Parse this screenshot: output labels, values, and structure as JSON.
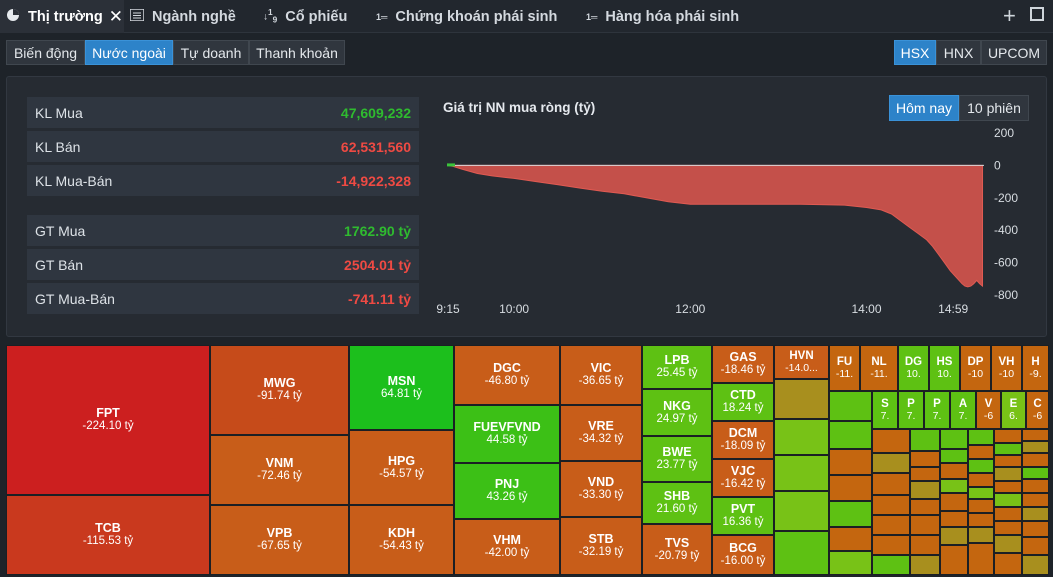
{
  "tabs": [
    {
      "label": "Thị trường",
      "icon": "pie-chart-icon"
    },
    {
      "label": "Ngành nghề",
      "icon": "list-icon"
    },
    {
      "label": "Cổ phiếu",
      "icon": "sort-numeric-icon"
    },
    {
      "label": "Chứng khoán phái sinh",
      "icon": "ordered-list-icon"
    },
    {
      "label": "Hàng hóa phái sinh",
      "icon": "ordered-list-icon"
    }
  ],
  "subtabs": [
    "Biến động",
    "Nước ngoài",
    "Tự doanh",
    "Thanh khoản"
  ],
  "subtab_selected": "Nước ngoài",
  "exchanges": [
    "HSX",
    "HNX",
    "UPCOM"
  ],
  "exchange_selected": "HSX",
  "stats": [
    {
      "label": "KL Mua",
      "value": "47,609,232"
    },
    {
      "label": "KL Bán",
      "value": "62,531,560"
    },
    {
      "label": "KL Mua-Bán",
      "value": "-14,922,328"
    },
    {
      "label": "GT Mua",
      "value": "1762.90 tỷ"
    },
    {
      "label": "GT Bán",
      "value": "2504.01 tỷ"
    },
    {
      "label": "GT Mua-Bán",
      "value": "-741.11 tỷ"
    }
  ],
  "chart_toggle": [
    "Hôm nay",
    "10 phiên"
  ],
  "chart_data": {
    "type": "area",
    "title": "Giá trị NN mua ròng (tỷ)",
    "x_ticks": [
      "9:15",
      "10:00",
      "12:00",
      "14:00",
      "14:59"
    ],
    "y_ticks": [
      "200",
      "0",
      "-200",
      "-400",
      "-600",
      "-800"
    ],
    "ylim": [
      -800,
      200
    ],
    "grid": false,
    "points": [
      [
        0,
        0
      ],
      [
        3,
        -5
      ],
      [
        10,
        -25
      ],
      [
        20,
        -50
      ],
      [
        30,
        -65
      ],
      [
        45,
        -80
      ],
      [
        60,
        -100
      ],
      [
        75,
        -120
      ],
      [
        90,
        -140
      ],
      [
        105,
        -160
      ],
      [
        120,
        -175
      ],
      [
        135,
        -200
      ],
      [
        150,
        -225
      ],
      [
        165,
        -240
      ],
      [
        180,
        -240
      ],
      [
        210,
        -240
      ],
      [
        240,
        -240
      ],
      [
        270,
        -245
      ],
      [
        285,
        -260
      ],
      [
        295,
        -275
      ],
      [
        302,
        -300
      ],
      [
        308,
        -340
      ],
      [
        314,
        -380
      ],
      [
        320,
        -420
      ],
      [
        326,
        -460
      ],
      [
        330,
        -500
      ],
      [
        334,
        -550
      ],
      [
        338,
        -600
      ],
      [
        342,
        -650
      ],
      [
        346,
        -690
      ],
      [
        350,
        -730
      ],
      [
        352,
        -745
      ],
      [
        354,
        -750
      ],
      [
        356,
        -745
      ],
      [
        358,
        -730
      ],
      [
        360,
        -710
      ],
      [
        362,
        -730
      ],
      [
        364,
        -745
      ]
    ]
  },
  "treemap": [
    {
      "s": "FPT",
      "v": "-224.10 tỷ"
    },
    {
      "s": "TCB",
      "v": "-115.53 tỷ"
    },
    {
      "s": "MWG",
      "v": "-91.74 tỷ"
    },
    {
      "s": "VNM",
      "v": "-72.46 tỷ"
    },
    {
      "s": "VPB",
      "v": "-67.65 tỷ"
    },
    {
      "s": "MSN",
      "v": "64.81 tỷ"
    },
    {
      "s": "HPG",
      "v": "-54.57 tỷ"
    },
    {
      "s": "KDH",
      "v": "-54.43 tỷ"
    },
    {
      "s": "DGC",
      "v": "-46.80 tỷ"
    },
    {
      "s": "FUEVFVND",
      "v": "44.58 tỷ"
    },
    {
      "s": "PNJ",
      "v": "43.26 tỷ"
    },
    {
      "s": "VHM",
      "v": "-42.00 tỷ"
    },
    {
      "s": "VIC",
      "v": "-36.65 tỷ"
    },
    {
      "s": "VRE",
      "v": "-34.32 tỷ"
    },
    {
      "s": "VND",
      "v": "-33.30 tỷ"
    },
    {
      "s": "STB",
      "v": "-32.19 tỷ"
    },
    {
      "s": "LPB",
      "v": "25.45 tỷ"
    },
    {
      "s": "NKG",
      "v": "24.97 tỷ"
    },
    {
      "s": "BWE",
      "v": "23.77 tỷ"
    },
    {
      "s": "SHB",
      "v": "21.60 tỷ"
    },
    {
      "s": "TVS",
      "v": "-20.79 tỷ"
    },
    {
      "s": "GAS",
      "v": "-18.46 tỷ"
    },
    {
      "s": "CTD",
      "v": "18.24 tỷ"
    },
    {
      "s": "DCM",
      "v": "-18.09 tỷ"
    },
    {
      "s": "VJC",
      "v": "-16.42 tỷ"
    },
    {
      "s": "PVT",
      "v": "16.36 tỷ"
    },
    {
      "s": "BCG",
      "v": "-16.00 tỷ"
    },
    {
      "s": "HVN",
      "v": "-14.0..."
    },
    {
      "s": "FU",
      "v": "-11."
    },
    {
      "s": "NL",
      "v": "-11."
    },
    {
      "s": "DG",
      "v": "10."
    },
    {
      "s": "HS",
      "v": "10."
    },
    {
      "s": "DP",
      "v": "-10"
    },
    {
      "s": "VH",
      "v": "-10"
    },
    {
      "s": "H",
      "v": "-9."
    },
    {
      "s": "S",
      "v": "7."
    },
    {
      "s": "P",
      "v": "7."
    },
    {
      "s": "P",
      "v": "7."
    },
    {
      "s": "A",
      "v": "7."
    },
    {
      "s": "V",
      "v": "-6"
    },
    {
      "s": "E",
      "v": "6."
    },
    {
      "s": "C",
      "v": "-6"
    }
  ]
}
